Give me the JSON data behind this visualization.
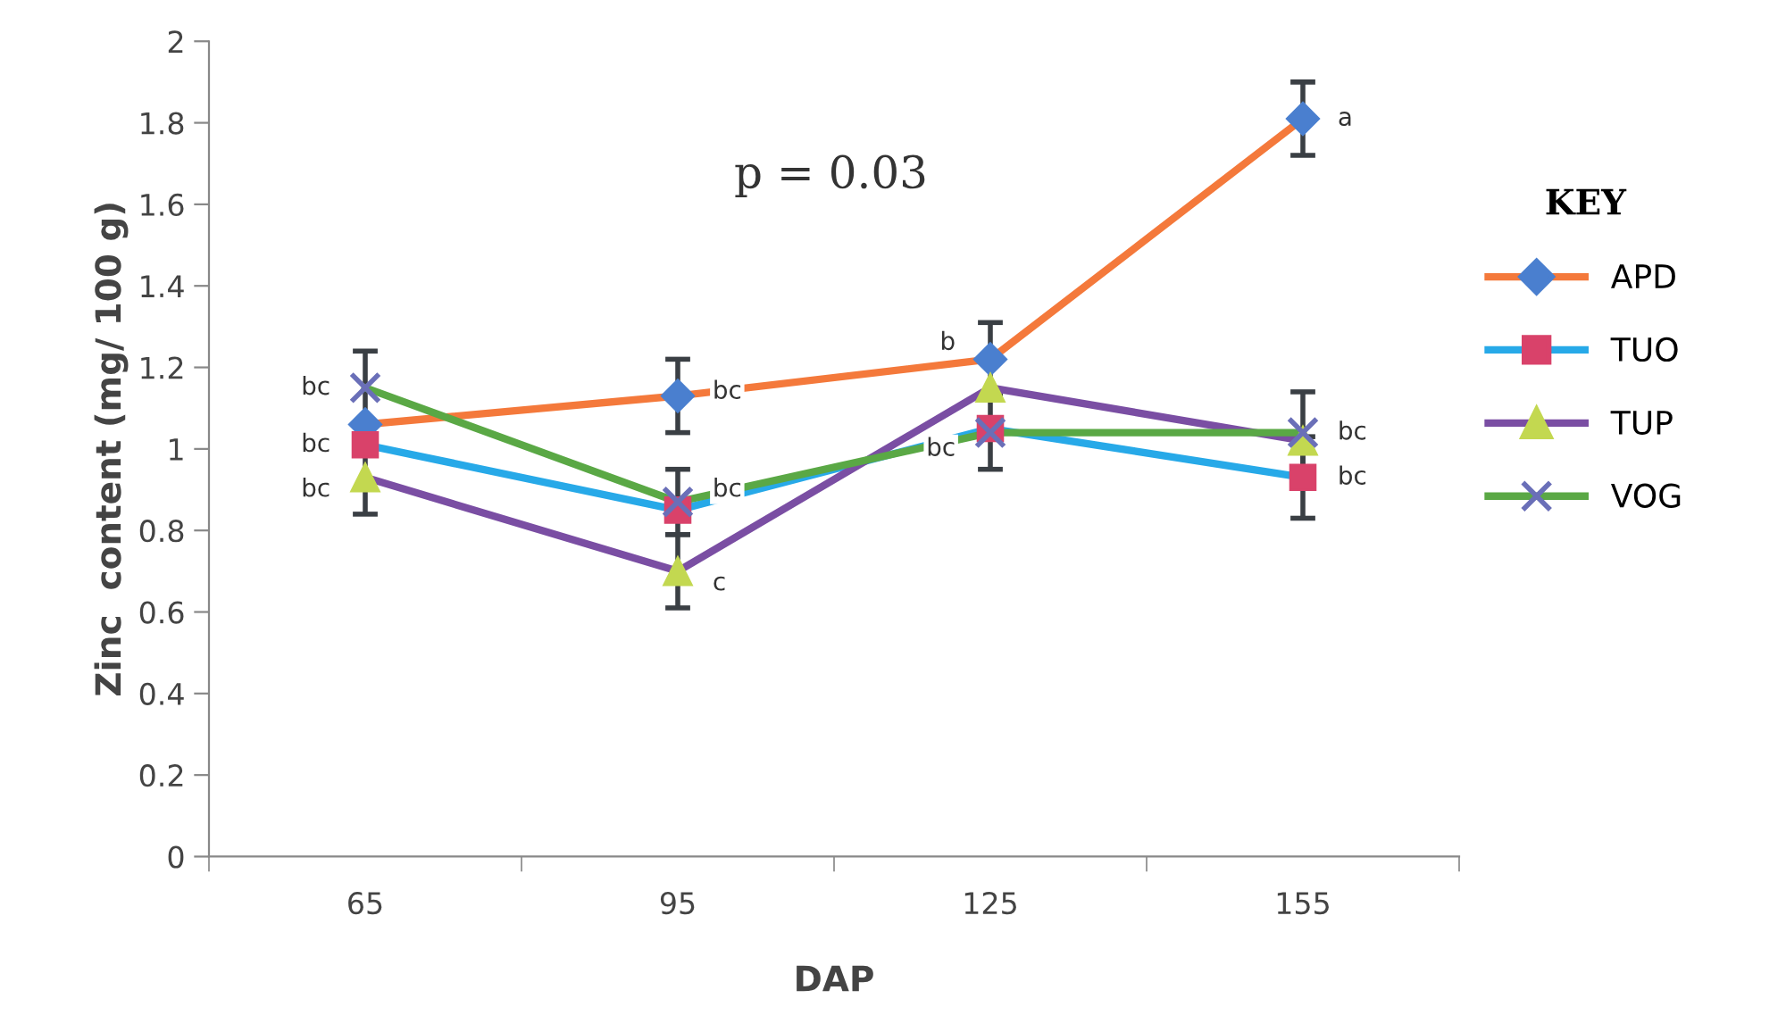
{
  "chart_data": {
    "type": "line",
    "xlabel": "DAP",
    "ylabel": "Zinc  content (mg/ 100 g)",
    "legend_title": "KEY",
    "categories": [
      "65",
      "95",
      "125",
      "155"
    ],
    "series": [
      {
        "name": "APD",
        "color": "#f4793b",
        "colors": [
          "#4a7fcf",
          "#4a7fcf",
          "#4a7fcf",
          "#4a7fcf"
        ],
        "marker": "diamond",
        "values": [
          1.06,
          1.13,
          1.22,
          1.81
        ],
        "errors": [
          null,
          0.09,
          0.09,
          0.09
        ]
      },
      {
        "name": "TUO",
        "color": "#27a9e8",
        "colors": [
          "#d9426a",
          "#d9426a",
          "#d9426a",
          "#d9426a"
        ],
        "marker": "square",
        "values": [
          1.01,
          0.85,
          1.05,
          0.93
        ],
        "errors": [
          null,
          null,
          null,
          0.1
        ]
      },
      {
        "name": "TUP",
        "color": "#7a4ea3",
        "colors": [
          "#c3d850",
          "#c3d850",
          "#c3d850",
          "#c3d850"
        ],
        "marker": "triangle",
        "values": [
          0.93,
          0.7,
          1.15,
          1.02
        ],
        "errors": [
          0.09,
          0.09,
          null,
          null
        ]
      },
      {
        "name": "VOG",
        "color": "#5aa845",
        "colors": [
          "#6a6fb8",
          "#6a6fb8",
          "#6a6fb8",
          "#6a6fb8"
        ],
        "marker": "cross",
        "values": [
          1.15,
          0.87,
          1.04,
          1.04
        ],
        "errors": [
          0.09,
          0.08,
          0.09,
          0.1
        ]
      }
    ],
    "ylim": [
      0,
      2
    ],
    "yticks": [
      0,
      0.2,
      0.4,
      0.6,
      0.8,
      1,
      1.2,
      1.4,
      1.6,
      1.8,
      2
    ],
    "grid": false,
    "legend": "right",
    "annotations": [
      "p = 0.03",
      {
        "text": "bc",
        "x": "65",
        "y": 1.15
      },
      {
        "text": "bc",
        "x": "65",
        "y": 1.01
      },
      {
        "text": "bc",
        "x": "65",
        "y": 0.9
      },
      {
        "text": "bc",
        "x": "95",
        "y": 1.14
      },
      {
        "text": "bc",
        "x": "95",
        "y": 0.9
      },
      {
        "text": "c",
        "x": "95",
        "y": 0.67
      },
      {
        "text": "b",
        "x": "125",
        "y": 1.26
      },
      {
        "text": "bc",
        "x": "125",
        "y": 1.0
      },
      {
        "text": "a",
        "x": "155",
        "y": 1.81
      },
      {
        "text": "bc",
        "x": "155",
        "y": 1.04
      },
      {
        "text": "bc",
        "x": "155",
        "y": 0.93
      }
    ]
  }
}
